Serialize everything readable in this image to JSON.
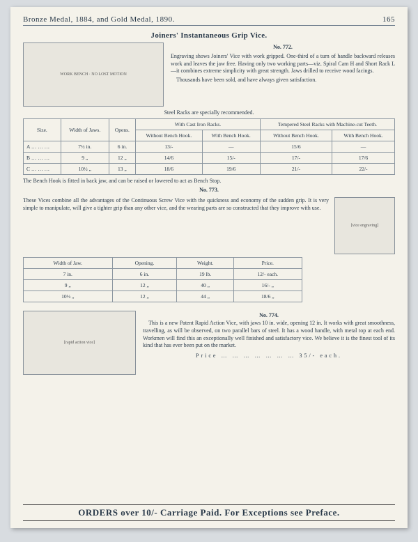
{
  "header": {
    "title": "Bronze Medal, 1884, and Gold Medal, 1890.",
    "pageNum": "165"
  },
  "title1": "Joiners' Instantaneous Grip Vice.",
  "no772": {
    "label": "No. 772.",
    "text": "Engraving shows Joiners' Vice with work gripped. One-third of a turn of handle backward releases work and leaves the jaw free. Having only two working parts—viz. Spiral Cam H and Short Rack L—it combines extreme simplicity with great strength. Jaws drilled to receive wood facings.",
    "text2": "Thousands have been sold, and have always given satisfaction.",
    "note": "Steel Racks are specially recommended."
  },
  "table1": {
    "head": {
      "size": "Size.",
      "width": "Width of Jaws.",
      "opens": "Opens.",
      "cast": "With Cast Iron Racks.",
      "steel": "Tempered Steel Racks with Machine-cut Teeth.",
      "wo": "Without Bench Hook.",
      "wi": "With Bench Hook."
    },
    "rows": [
      {
        "s": "A   …   …   …",
        "w": "7½ in.",
        "o": "6 in.",
        "c1": "13/-",
        "c2": "—",
        "c3": "15/6",
        "c4": "—"
      },
      {
        "s": "B   …   …   …",
        "w": "9  „",
        "o": "12 „",
        "c1": "14/6",
        "c2": "15/-",
        "c3": "17/-",
        "c4": "17/6"
      },
      {
        "s": "C   …   …   …",
        "w": "10½ „",
        "o": "13 „",
        "c1": "18/6",
        "c2": "19/6",
        "c3": "21/-",
        "c4": "22/-"
      }
    ],
    "foot": "The Bench Hook is fitted in back jaw, and can be raised or lowered to act as Bench Stop."
  },
  "no773": {
    "label": "No. 773.",
    "text": "These Vices combine all the advantages of the Continuous Screw Vice with the quickness and economy of the sudden grip. It is very simple to manipulate, will give a tighter grip than any other vice, and the wearing parts are so constructed that they improve with use."
  },
  "table2": {
    "head": {
      "w": "Width of Jaw.",
      "o": "Opening.",
      "wt": "Weight.",
      "p": "Price."
    },
    "rows": [
      {
        "w": "7 in.",
        "o": "6 in.",
        "wt": "19 lb.",
        "p": "12/- each."
      },
      {
        "w": "9  „",
        "o": "12 „",
        "wt": "40 „",
        "p": "16/-  „"
      },
      {
        "w": "10½ „",
        "o": "12 „",
        "wt": "44 „",
        "p": "18/6  „"
      }
    ]
  },
  "no774": {
    "label": "No. 774.",
    "text": "This is a new Patent Rapid Action Vice, with jaws 10 in. wide, opening 12 in. It works with great smoothness, travelling, as will be observed, on two parallel bars of steel. It has a wood handle, with metal top at each end. Workmen will find this an exceptionally well finished and satisfactory vice. We believe it is the finest tool of its kind that has ever been put on the market.",
    "price": "Price   …   …   …   …   …   …   …   35/- each."
  },
  "footer": "ORDERS over 10/- Carriage Paid.  For Exceptions see Preface.",
  "illus": {
    "i1": "WORK BENCH · NO LOST MOTION",
    "i2": "[vice engraving]",
    "i3": "[rapid action vice]"
  }
}
